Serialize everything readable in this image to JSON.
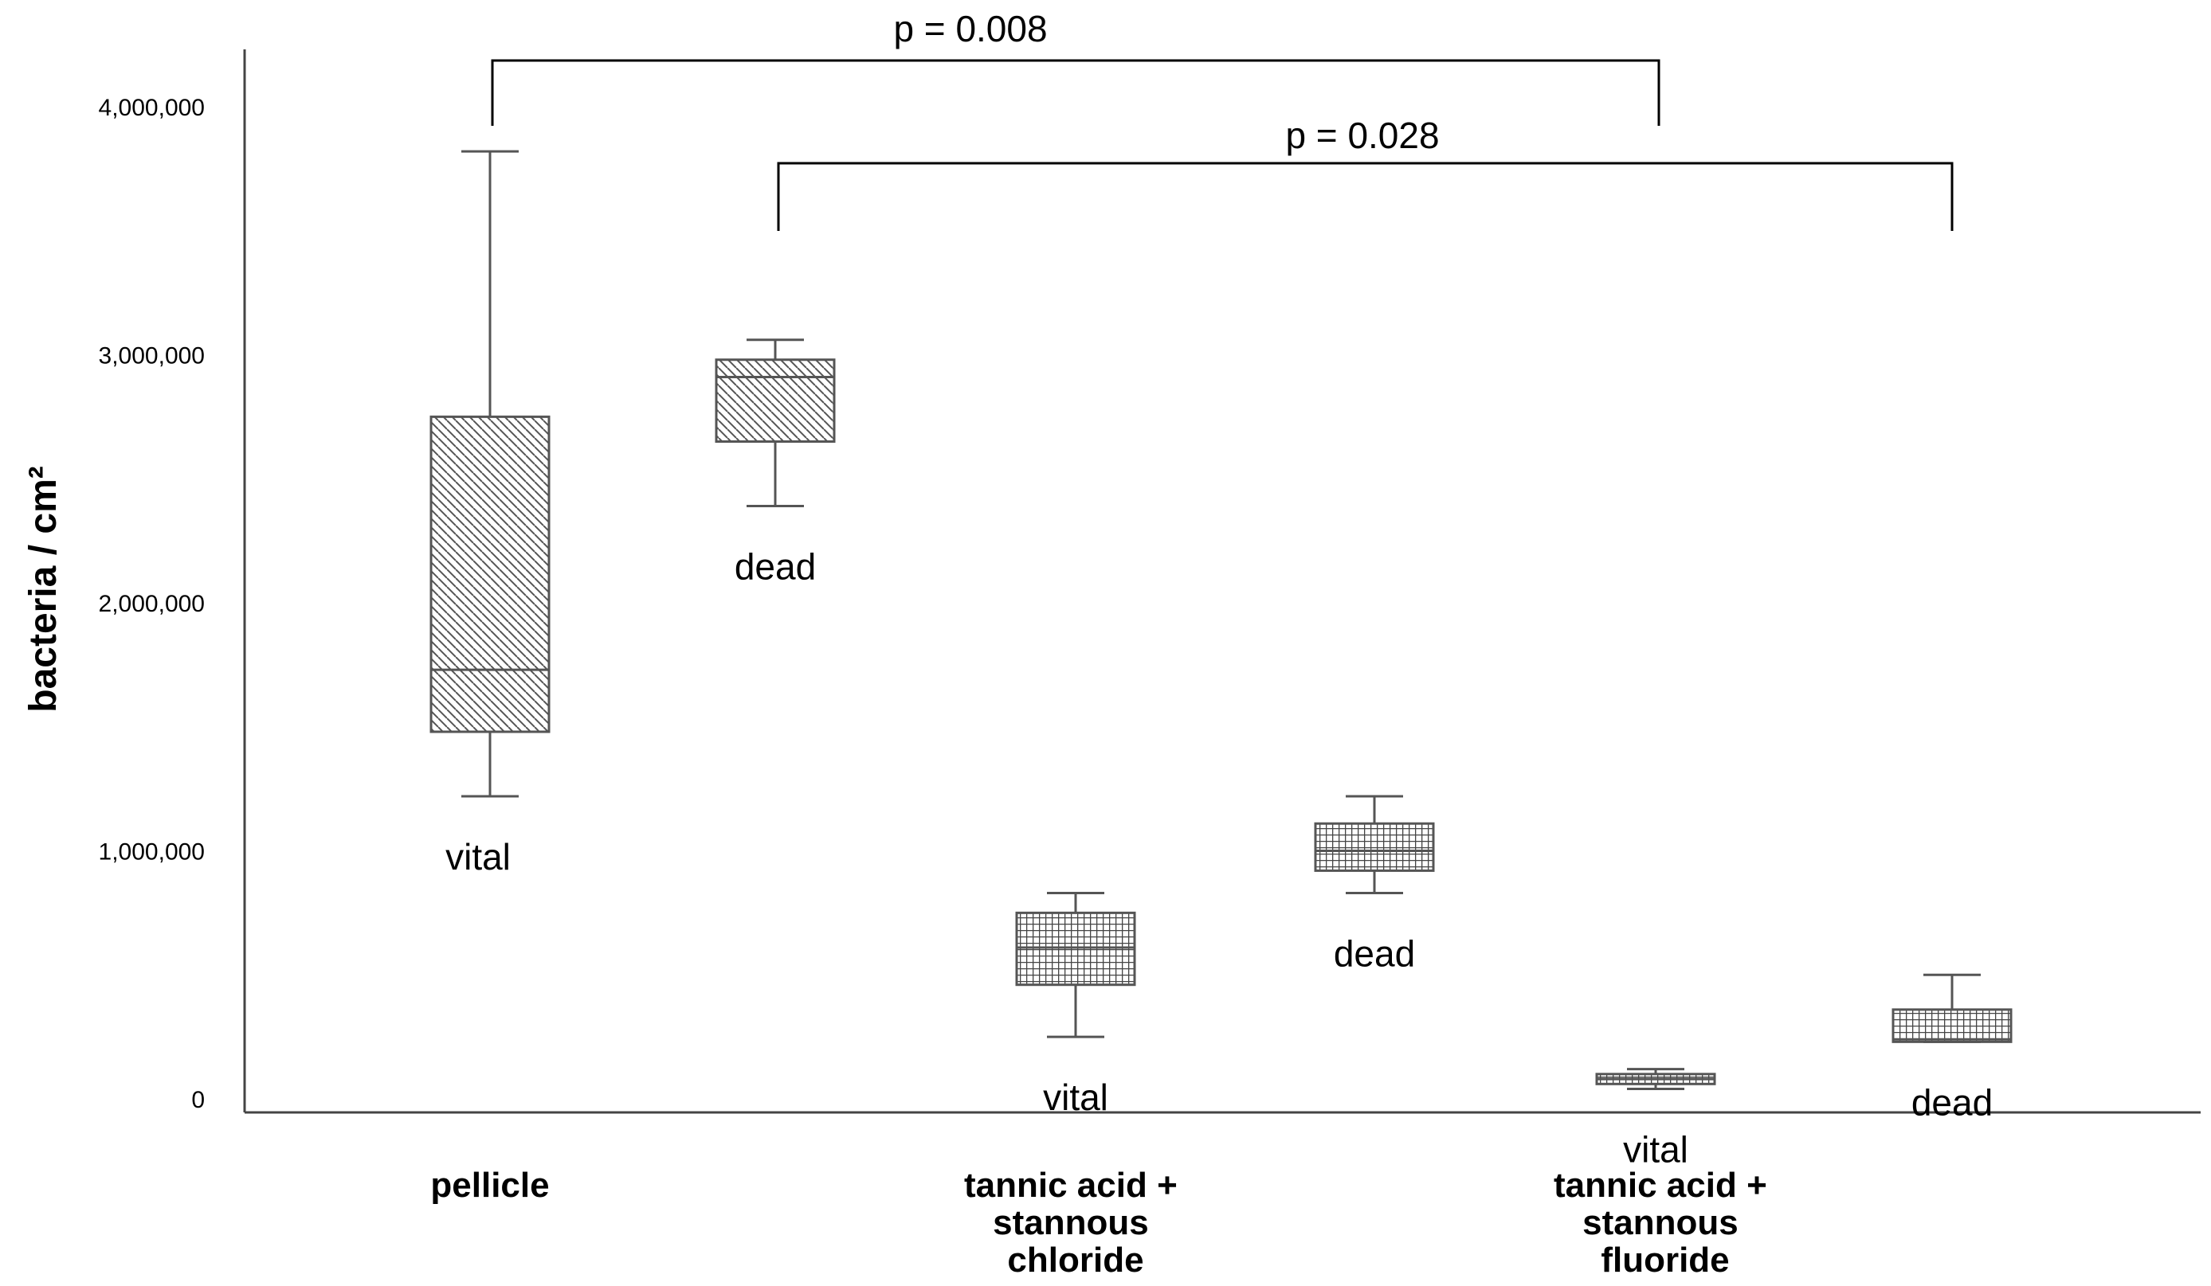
{
  "chart_data": {
    "type": "box",
    "title": "",
    "xlabel": "",
    "ylabel": "bacteria / cm²",
    "ylim": [
      -220000,
      4200000
    ],
    "yticks": [
      0,
      1000000,
      2000000,
      3000000,
      4000000
    ],
    "ytick_labels": [
      "0",
      "1,000,000",
      "2,000,000",
      "3,000,000",
      "4,000,000"
    ],
    "grid": false,
    "categories": [
      {
        "label": "tannic acid + stannous chloride",
        "lines": [
          "tannic acid +",
          "stannous",
          "chloride"
        ]
      },
      {
        "label": "tannic acid + stannous fluoride",
        "lines": [
          "tannic acid +",
          "stannous",
          "fluoride"
        ]
      }
    ],
    "category_first_label": "pellicle",
    "boxes": [
      {
        "group": "pellicle",
        "label": "vital",
        "pattern": "diagonal",
        "min": 1220000,
        "q1": 1480000,
        "median": 1730000,
        "q3": 2750000,
        "max": 3820000
      },
      {
        "group": "pellicle",
        "label": "dead",
        "pattern": "diagonal",
        "min": 2390000,
        "q1": 2650000,
        "median": 2910000,
        "q3": 2980000,
        "max": 3060000
      },
      {
        "group": "tannic acid + stannous chloride",
        "label": "vital",
        "pattern": "grid",
        "min": 250000,
        "q1": 460000,
        "median": 610000,
        "q3": 750000,
        "max": 830000
      },
      {
        "group": "tannic acid + stannous chloride",
        "label": "dead",
        "pattern": "grid",
        "min": 830000,
        "q1": 920000,
        "median": 1000000,
        "q3": 1110000,
        "max": 1220000
      },
      {
        "group": "tannic acid + stannous fluoride",
        "label": "vital",
        "pattern": "grid",
        "min": 40000,
        "q1": 60000,
        "median": 80000,
        "q3": 100000,
        "max": 120000
      },
      {
        "group": "tannic acid + stannous fluoride",
        "label": "dead",
        "pattern": "grid",
        "min": 230000,
        "q1": 230000,
        "median": 240000,
        "q3": 360000,
        "max": 500000
      }
    ],
    "annotations": [
      {
        "text": "p = 0.008",
        "from_box": 0,
        "to_box": 4
      },
      {
        "text": "p = 0.028",
        "from_box": 1,
        "to_box": 5
      }
    ]
  }
}
